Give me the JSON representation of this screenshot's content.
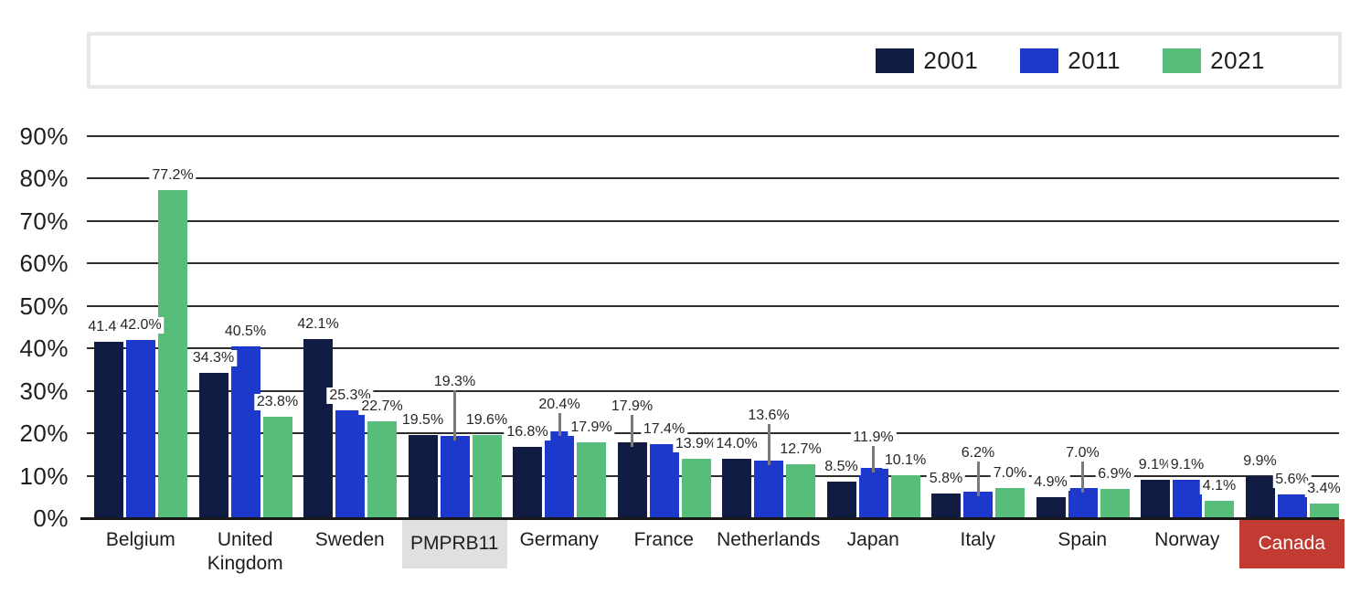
{
  "chart_data": {
    "type": "bar",
    "title": "",
    "unit": "%",
    "categories": [
      "Belgium",
      "United Kingdom",
      "Sweden",
      "PMPRB11",
      "Germany",
      "France",
      "Netherlands",
      "Japan",
      "Italy",
      "Spain",
      "Norway",
      "Canada"
    ],
    "series": [
      {
        "name": "2001",
        "color": "#101C41",
        "values": [
          41.4,
          34.3,
          42.1,
          19.5,
          16.8,
          17.9,
          14.0,
          8.5,
          5.8,
          4.9,
          9.1,
          9.9
        ]
      },
      {
        "name": "2011",
        "color": "#1D39CB",
        "values": [
          42.0,
          40.5,
          25.3,
          19.3,
          20.4,
          17.4,
          13.6,
          11.9,
          6.2,
          7.0,
          9.1,
          5.6
        ]
      },
      {
        "name": "2021",
        "color": "#57BD7A",
        "values": [
          77.2,
          23.8,
          22.7,
          19.6,
          17.9,
          13.9,
          12.7,
          10.1,
          7.0,
          6.9,
          4.1,
          3.4
        ]
      }
    ],
    "value_label_format": "one_decimal_percent",
    "ylim": [
      0,
      90
    ],
    "ytick_labels": [
      "0%",
      "10%",
      "20%",
      "30%",
      "40%",
      "50%",
      "60%",
      "70%",
      "80%",
      "90%"
    ],
    "grid": true,
    "legend_position": "top-right",
    "leader_lines": [
      {
        "series": "2001",
        "category": "France",
        "raise": 30
      },
      {
        "series": "2011",
        "category": "PMPRB11",
        "raise": 50
      },
      {
        "series": "2011",
        "category": "Germany",
        "raise": 20
      },
      {
        "series": "2011",
        "category": "Netherlands",
        "raise": 40
      },
      {
        "series": "2011",
        "category": "Japan",
        "raise": 24
      },
      {
        "series": "2011",
        "category": "Italy",
        "raise": 33
      },
      {
        "series": "2011",
        "category": "Spain",
        "raise": 29
      }
    ],
    "category_highlights": {
      "PMPRB11": {
        "background": "#E0E0E0",
        "text": "#1D1D1D"
      },
      "Canada": {
        "background": "#C23B32",
        "text": "#FFFFFF"
      }
    }
  },
  "legend": {
    "entries": [
      {
        "label": "2001",
        "color": "#101C41"
      },
      {
        "label": "2011",
        "color": "#1D39CB"
      },
      {
        "label": "2021",
        "color": "#57BD7A"
      }
    ]
  },
  "colors": {
    "background": "#FFFFFF",
    "gridline": "#2D2D2D",
    "axis_line": "#191919",
    "leader_line": "#7A7A7A",
    "legend_border": "#E7E7E7",
    "text": "#1D1D1D"
  }
}
